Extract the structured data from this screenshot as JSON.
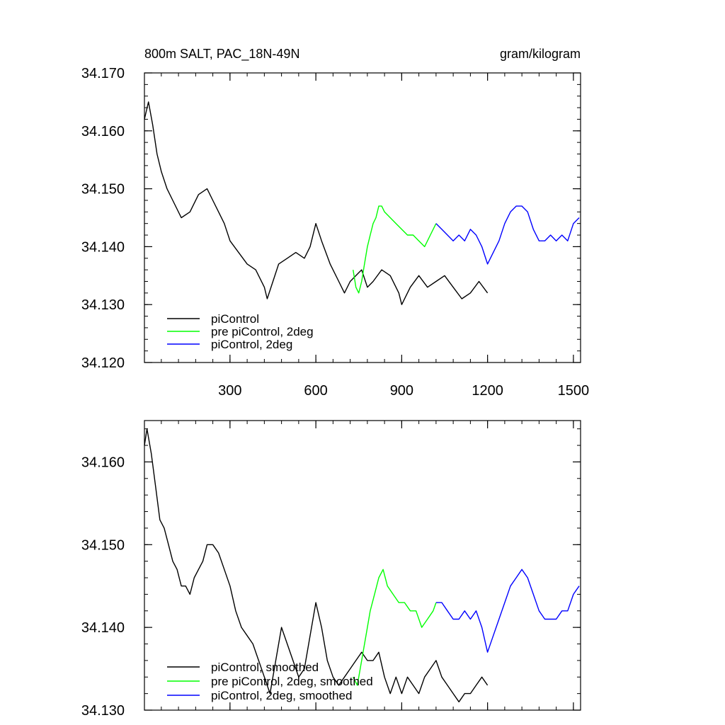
{
  "chart_data": [
    {
      "type": "line",
      "title": "800m SALT, PAC_18N-49N",
      "units": "gram/kilogram",
      "xlim": [
        1,
        1525
      ],
      "ylim": [
        34.12,
        34.17
      ],
      "xticks": [
        300,
        600,
        900,
        1200,
        1500
      ],
      "yticks": [
        34.12,
        34.13,
        34.14,
        34.15,
        34.16,
        34.17
      ],
      "ytick_labels": [
        "34.120",
        "34.130",
        "34.140",
        "34.150",
        "34.160",
        "34.170"
      ],
      "legend_position": "bottom-left",
      "series": [
        {
          "name": "piControl",
          "color": "#000000",
          "x": [
            1,
            15,
            30,
            45,
            60,
            80,
            100,
            130,
            160,
            190,
            220,
            240,
            260,
            280,
            300,
            330,
            360,
            390,
            420,
            430,
            450,
            470,
            500,
            530,
            560,
            580,
            600,
            620,
            650,
            680,
            700,
            720,
            740,
            760,
            780,
            800,
            830,
            860,
            890,
            900,
            930,
            960,
            990,
            1020,
            1050,
            1080,
            1110,
            1140,
            1170,
            1200
          ],
          "values": [
            34.162,
            34.165,
            34.161,
            34.156,
            34.153,
            34.15,
            34.148,
            34.145,
            34.146,
            34.149,
            34.15,
            34.148,
            34.146,
            34.144,
            34.141,
            34.139,
            34.137,
            34.136,
            34.133,
            34.131,
            34.134,
            34.137,
            34.138,
            34.139,
            34.138,
            34.14,
            34.144,
            34.141,
            34.137,
            34.134,
            34.132,
            34.134,
            34.135,
            34.136,
            34.133,
            34.134,
            34.136,
            34.135,
            34.132,
            34.13,
            34.133,
            34.135,
            34.133,
            34.134,
            34.135,
            34.133,
            34.131,
            34.132,
            34.134,
            34.132
          ]
        },
        {
          "name": "pre piControl, 2deg",
          "color": "#00ff00",
          "x": [
            730,
            740,
            750,
            760,
            770,
            780,
            790,
            800,
            810,
            820,
            830,
            840,
            860,
            880,
            900,
            920,
            940,
            960,
            980,
            1000,
            1020
          ],
          "values": [
            34.136,
            34.133,
            34.132,
            34.134,
            34.137,
            34.14,
            34.142,
            34.144,
            34.145,
            34.147,
            34.147,
            34.146,
            34.145,
            34.144,
            34.143,
            34.142,
            34.142,
            34.141,
            34.14,
            34.142,
            34.144
          ]
        },
        {
          "name": "piControl, 2deg",
          "color": "#0000ff",
          "x": [
            1020,
            1040,
            1060,
            1080,
            1100,
            1120,
            1140,
            1160,
            1180,
            1200,
            1220,
            1240,
            1260,
            1280,
            1300,
            1320,
            1340,
            1360,
            1380,
            1400,
            1420,
            1440,
            1460,
            1480,
            1500,
            1520
          ],
          "values": [
            34.144,
            34.143,
            34.142,
            34.141,
            34.142,
            34.141,
            34.143,
            34.142,
            34.14,
            34.137,
            34.139,
            34.141,
            34.144,
            34.146,
            34.147,
            34.147,
            34.146,
            34.143,
            34.141,
            34.141,
            34.142,
            34.141,
            34.142,
            34.141,
            34.144,
            34.145
          ]
        }
      ]
    },
    {
      "type": "line",
      "xlim": [
        1,
        1525
      ],
      "ylim": [
        34.13,
        34.165
      ],
      "xticks": [
        300,
        600,
        900,
        1200,
        1500
      ],
      "yticks": [
        34.13,
        34.14,
        34.15,
        34.16
      ],
      "ytick_labels": [
        "34.130",
        "34.140",
        "34.150",
        "34.160"
      ],
      "legend_position": "bottom-left",
      "series": [
        {
          "name": "piControl, smoothed",
          "color": "#000000",
          "x": [
            1,
            10,
            25,
            40,
            55,
            70,
            85,
            100,
            115,
            130,
            145,
            160,
            175,
            190,
            205,
            220,
            240,
            260,
            280,
            300,
            320,
            340,
            360,
            380,
            400,
            420,
            440,
            460,
            480,
            500,
            520,
            540,
            560,
            580,
            600,
            620,
            640,
            660,
            680,
            700,
            720,
            740,
            760,
            780,
            800,
            820,
            840,
            860,
            880,
            900,
            920,
            940,
            960,
            980,
            1000,
            1020,
            1040,
            1060,
            1080,
            1100,
            1120,
            1140,
            1160,
            1180,
            1200
          ],
          "values": [
            34.162,
            34.164,
            34.161,
            34.157,
            34.153,
            34.152,
            34.15,
            34.148,
            34.147,
            34.145,
            34.145,
            34.144,
            34.146,
            34.147,
            34.148,
            34.15,
            34.15,
            34.149,
            34.147,
            34.145,
            34.142,
            34.14,
            34.139,
            34.138,
            34.136,
            34.134,
            34.132,
            34.136,
            34.14,
            34.138,
            34.136,
            34.134,
            34.135,
            34.139,
            34.143,
            34.14,
            34.136,
            34.134,
            34.133,
            34.134,
            34.135,
            34.136,
            34.137,
            34.136,
            34.136,
            34.137,
            34.134,
            34.132,
            34.134,
            34.132,
            34.134,
            34.133,
            34.132,
            34.134,
            34.135,
            34.136,
            34.134,
            34.133,
            34.132,
            34.131,
            34.132,
            34.132,
            34.133,
            34.134,
            34.133
          ]
        },
        {
          "name": "pre piControl, 2deg, smoothed",
          "color": "#00ff00",
          "x": [
            730,
            745,
            760,
            775,
            790,
            805,
            820,
            835,
            850,
            870,
            890,
            910,
            930,
            950,
            970,
            990,
            1010,
            1020
          ],
          "values": [
            34.134,
            34.133,
            34.136,
            34.139,
            34.142,
            34.144,
            34.146,
            34.147,
            34.145,
            34.144,
            34.143,
            34.143,
            34.142,
            34.142,
            34.14,
            34.141,
            34.142,
            34.143
          ]
        },
        {
          "name": "piControl, 2deg, smoothed",
          "color": "#0000ff",
          "x": [
            1020,
            1040,
            1060,
            1080,
            1100,
            1120,
            1140,
            1160,
            1180,
            1200,
            1220,
            1240,
            1260,
            1280,
            1300,
            1320,
            1340,
            1360,
            1380,
            1400,
            1420,
            1440,
            1460,
            1480,
            1500,
            1520
          ],
          "values": [
            34.143,
            34.143,
            34.142,
            34.141,
            34.141,
            34.142,
            34.141,
            34.142,
            34.14,
            34.137,
            34.139,
            34.141,
            34.143,
            34.145,
            34.146,
            34.147,
            34.146,
            34.144,
            34.142,
            34.141,
            34.141,
            34.141,
            34.142,
            34.142,
            34.144,
            34.145
          ]
        }
      ]
    }
  ]
}
